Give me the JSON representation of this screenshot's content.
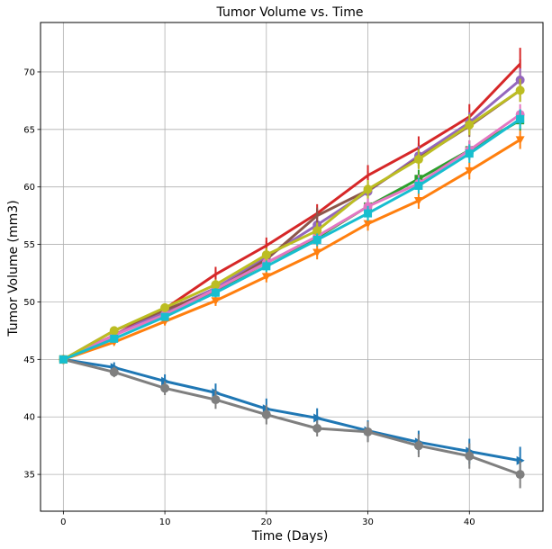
{
  "chart_data": {
    "type": "line",
    "title": "Tumor Volume vs. Time",
    "xlabel": "Time (Days)",
    "ylabel": "Tumor Volume (mm3)",
    "xlim": [
      -2.25,
      47.25
    ],
    "ylim": [
      31.8,
      74.3
    ],
    "grid": true,
    "x": [
      0,
      5,
      10,
      15,
      20,
      25,
      30,
      35,
      40,
      45
    ],
    "xticks": [
      0,
      10,
      20,
      30,
      40
    ],
    "yticks": [
      35,
      40,
      45,
      50,
      55,
      60,
      65,
      70
    ],
    "series": [
      {
        "color": "#1f77b4",
        "marker": "triangle-right",
        "values": [
          45.0,
          44.3,
          43.1,
          42.1,
          40.7,
          39.9,
          38.8,
          37.8,
          37.0,
          36.2
        ],
        "errors": [
          0,
          0.45,
          0.6,
          0.8,
          0.9,
          0.85,
          0.9,
          1.0,
          1.1,
          1.2
        ]
      },
      {
        "color": "#ff7f0e",
        "marker": "triangle-down",
        "values": [
          45.0,
          46.5,
          48.3,
          50.1,
          52.2,
          54.3,
          56.8,
          58.8,
          61.4,
          64.1
        ],
        "errors": [
          0,
          0.2,
          0.35,
          0.45,
          0.5,
          0.6,
          0.6,
          0.7,
          0.75,
          0.8
        ]
      },
      {
        "color": "#2ca02c",
        "marker": "square",
        "values": [
          45.0,
          47.1,
          49.0,
          51.0,
          53.4,
          55.6,
          58.3,
          60.7,
          63.2,
          65.8
        ],
        "errors": [
          0,
          0.2,
          0.35,
          0.45,
          0.55,
          0.6,
          0.7,
          0.8,
          0.85,
          0.9
        ]
      },
      {
        "color": "#d62728",
        "marker": "line",
        "values": [
          45.0,
          47.1,
          49.4,
          52.4,
          54.9,
          57.7,
          61.0,
          63.4,
          66.1,
          70.7
        ],
        "errors": [
          0,
          0.25,
          0.4,
          0.65,
          0.7,
          0.8,
          0.9,
          1.0,
          1.1,
          1.4
        ]
      },
      {
        "color": "#9467bd",
        "marker": "circle",
        "values": [
          45.0,
          47.1,
          49.2,
          51.2,
          53.9,
          56.7,
          59.6,
          62.7,
          65.6,
          69.3
        ],
        "errors": [
          0,
          0.2,
          0.35,
          0.45,
          0.6,
          0.7,
          0.8,
          0.85,
          0.9,
          1.0
        ]
      },
      {
        "color": "#8c564b",
        "marker": "none",
        "values": [
          45.0,
          47.5,
          49.3,
          51.0,
          53.7,
          57.5,
          59.7,
          62.5,
          65.3,
          68.4
        ],
        "errors": [
          0,
          0.2,
          0.35,
          0.45,
          0.6,
          0.7,
          0.8,
          0.85,
          0.95,
          1.0
        ]
      },
      {
        "color": "#e377c2",
        "marker": "circle",
        "values": [
          45.0,
          47.1,
          48.9,
          51.1,
          53.4,
          55.7,
          58.3,
          60.3,
          63.2,
          66.3
        ],
        "errors": [
          0,
          0.2,
          0.35,
          0.45,
          0.55,
          0.6,
          0.7,
          0.75,
          0.85,
          0.9
        ]
      },
      {
        "color": "#7f7f7f",
        "marker": "circle",
        "values": [
          45.0,
          43.9,
          42.5,
          41.5,
          40.2,
          39.0,
          38.7,
          37.5,
          36.6,
          35.0
        ],
        "errors": [
          0,
          0.45,
          0.6,
          0.8,
          0.85,
          0.7,
          0.9,
          1.0,
          1.1,
          1.2
        ]
      },
      {
        "color": "#bcbd22",
        "marker": "circle",
        "values": [
          45.0,
          47.5,
          49.5,
          51.5,
          54.1,
          56.2,
          59.8,
          62.4,
          65.4,
          68.4
        ],
        "errors": [
          0,
          0.2,
          0.35,
          0.45,
          0.6,
          0.7,
          0.8,
          0.85,
          0.9,
          1.0
        ]
      },
      {
        "color": "#17becf",
        "marker": "square",
        "values": [
          45.0,
          46.8,
          48.7,
          50.8,
          53.1,
          55.4,
          57.7,
          60.1,
          62.9,
          65.9
        ],
        "errors": [
          0,
          0.2,
          0.3,
          0.4,
          0.5,
          0.55,
          0.65,
          0.7,
          0.8,
          0.85
        ]
      }
    ]
  }
}
